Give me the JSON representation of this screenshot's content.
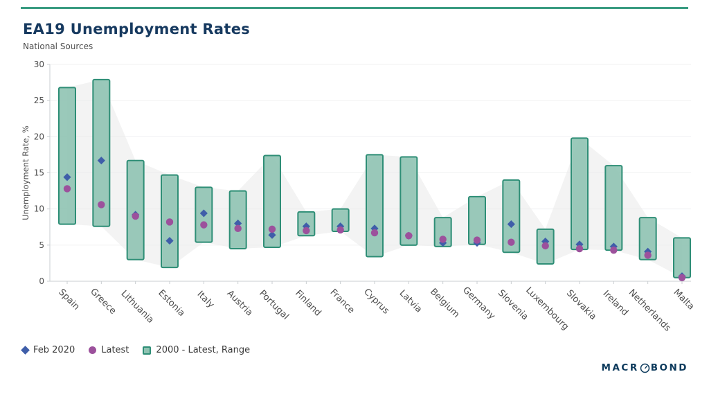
{
  "accent_color": "#3a9c82",
  "chart_data": {
    "type": "range-bar",
    "title": "EA19 Unemployment Rates",
    "subtitle": "National Sources",
    "ylabel": "Unemployment Rate, %",
    "ylim": [
      0,
      30
    ],
    "ytick_step": 5,
    "yticks": [
      0,
      5,
      10,
      15,
      20,
      25,
      30
    ],
    "grid": "horizontal",
    "legend_position": "bottom-left",
    "band_color": "#ebebeb",
    "categories": [
      "Spain",
      "Greece",
      "Lithuania",
      "Estonia",
      "Italy",
      "Austria",
      "Portugal",
      "Finland",
      "France",
      "Cyprus",
      "Latvia",
      "Belgium",
      "Germany",
      "Slovenia",
      "Luxembourg",
      "Slovakia",
      "Ireland",
      "Netherlands",
      "Malta"
    ],
    "series": [
      {
        "name": "Feb 2020",
        "marker": "diamond",
        "color": "#3f5ea9",
        "values": [
          14.4,
          16.7,
          9.2,
          5.6,
          9.4,
          8.0,
          6.4,
          7.6,
          7.6,
          7.3,
          6.3,
          5.3,
          5.3,
          7.9,
          5.5,
          5.1,
          4.8,
          4.1,
          0.7
        ]
      },
      {
        "name": "Latest",
        "marker": "circle",
        "color": "#9c519c",
        "values": [
          12.8,
          10.6,
          9.0,
          8.2,
          7.8,
          7.3,
          7.2,
          7.0,
          7.1,
          6.7,
          6.3,
          5.8,
          5.7,
          5.4,
          4.9,
          4.5,
          4.3,
          3.6,
          0.5
        ]
      },
      {
        "name": "2000 - Latest, Range",
        "marker": "range",
        "fill": "#8fc3b2",
        "stroke": "#2e8e76",
        "low": [
          7.9,
          7.6,
          3.0,
          1.9,
          5.4,
          4.5,
          4.7,
          6.3,
          6.9,
          3.4,
          5.0,
          4.8,
          5.1,
          4.0,
          2.4,
          4.4,
          4.3,
          3.0,
          0.5
        ],
        "high": [
          26.8,
          27.9,
          16.7,
          14.7,
          13.0,
          12.5,
          17.4,
          9.6,
          10.0,
          17.5,
          17.2,
          8.8,
          11.7,
          14.0,
          7.2,
          19.8,
          16.0,
          8.8,
          6.0
        ]
      }
    ]
  },
  "branding": {
    "logo_prefix": "MACR",
    "logo_suffix": "BOND",
    "logo_icon": "compass-o-icon",
    "color": "#0d3a5c"
  }
}
